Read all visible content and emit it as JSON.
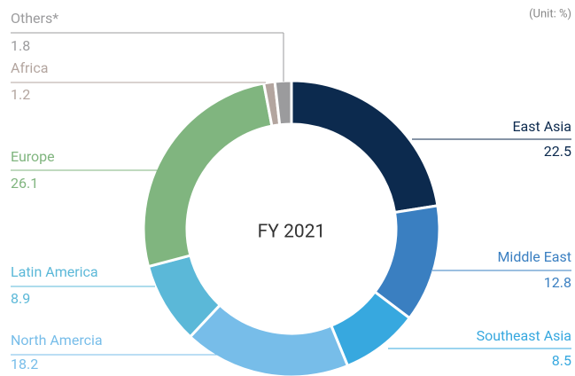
{
  "chart_data": {
    "type": "donut",
    "unit": "(Unit: %)",
    "center_label": "FY 2021",
    "categories": [
      "East Asia",
      "Middle East",
      "Southeast Asia",
      "North Amercia",
      "Latin America",
      "Europe",
      "Africa",
      "Others*"
    ],
    "values": [
      22.5,
      12.8,
      8.5,
      18.2,
      8.9,
      26.1,
      1.2,
      1.8
    ],
    "colors": [
      "#0c2a4e",
      "#3a7fc1",
      "#37a8df",
      "#77bde9",
      "#5bb8d8",
      "#80b57f",
      "#b3a59f",
      "#9b9b9d"
    ]
  }
}
